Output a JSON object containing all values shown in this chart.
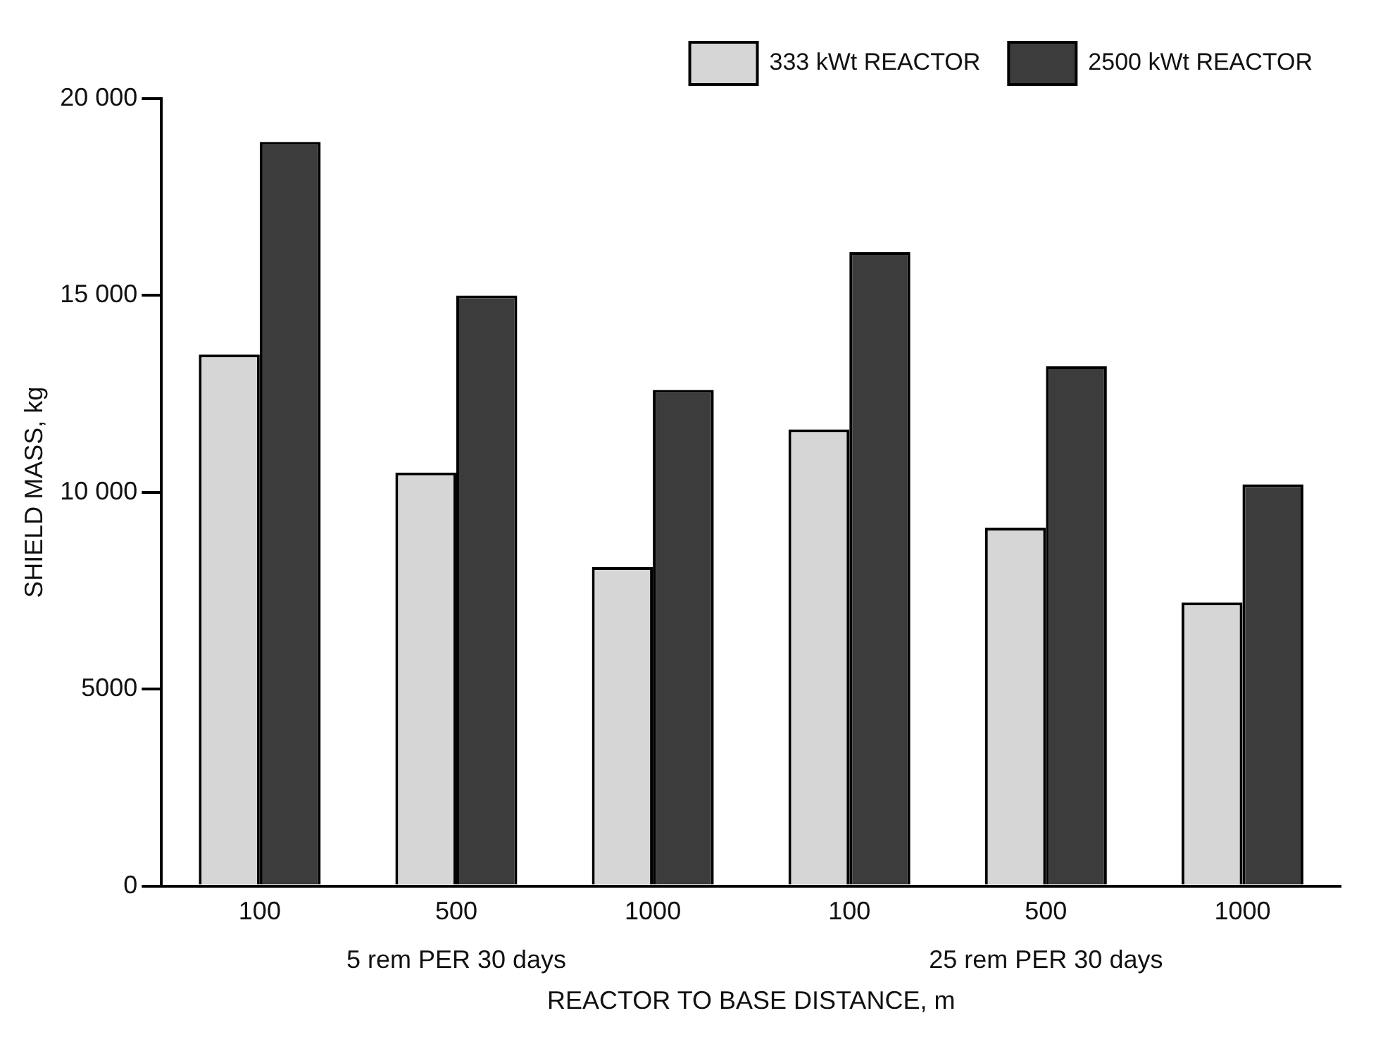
{
  "chart_data": {
    "type": "bar",
    "xlabel": "REACTOR TO BASE DISTANCE, m",
    "ylabel": "SHIELD MASS, kg",
    "categories": [
      "100",
      "500",
      "1000",
      "100",
      "500",
      "1000"
    ],
    "series": [
      {
        "name": "333 kWt REACTOR",
        "color": "#d6d6d6",
        "values": [
          13500,
          10500,
          8100,
          11600,
          9100,
          7200
        ]
      },
      {
        "name": "2500 kWt REACTOR",
        "color": "#3c3c3c",
        "values": [
          18900,
          15000,
          12600,
          16100,
          13200,
          10200
        ]
      }
    ],
    "ylim": [
      0,
      20000
    ],
    "yticks": [
      0,
      5000,
      {
        "value": 10000,
        "label": "10 000"
      },
      {
        "value": 15000,
        "label": "15 000"
      },
      {
        "value": 20000,
        "label": "20 000"
      }
    ],
    "annotations": [
      "5 rem PER 30 days",
      "25 rem PER 30 days"
    ],
    "grid": false,
    "legend": "top right"
  }
}
